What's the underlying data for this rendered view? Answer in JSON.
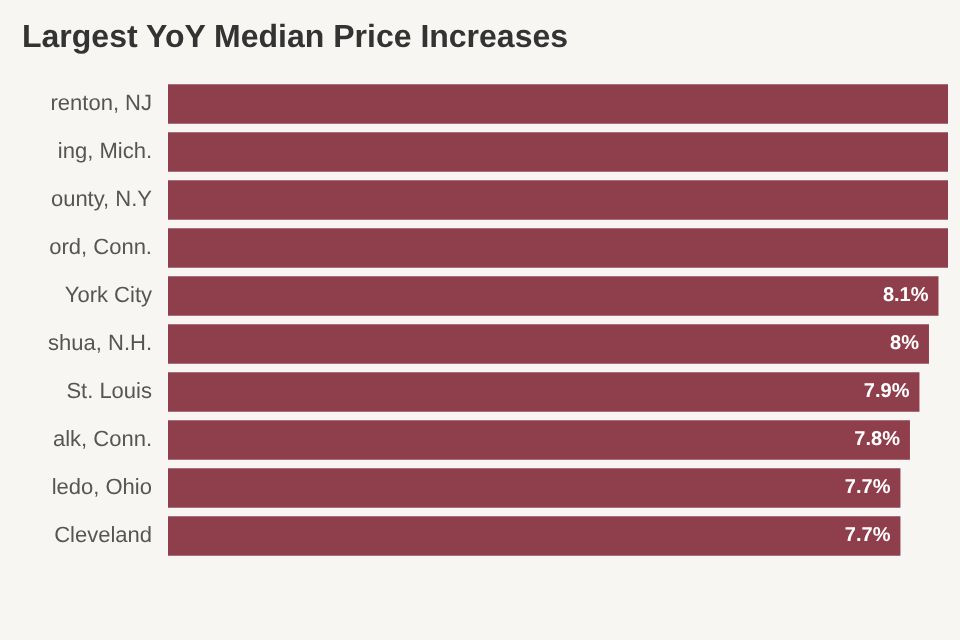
{
  "chart_data": {
    "type": "bar",
    "orientation": "horizontal",
    "title": "Largest YoY Median Price Increases",
    "categories": [
      "renton, NJ",
      "ing, Mich.",
      "ounty, N.Y",
      "ord, Conn.",
      "York City",
      "shua, N.H.",
      "St. Louis",
      "alk, Conn.",
      "ledo, Ohio",
      "Cleveland"
    ],
    "values": [
      8.2,
      8.2,
      8.2,
      8.2,
      8.1,
      8,
      7.9,
      7.8,
      7.7,
      7.7
    ],
    "value_labels": [
      null,
      null,
      null,
      null,
      "8.1%",
      "8%",
      "7.9%",
      "7.8%",
      "7.7%",
      "7.7%"
    ],
    "color": "#8f3f4c",
    "xlim": [
      0,
      8.2
    ],
    "grid": false
  }
}
